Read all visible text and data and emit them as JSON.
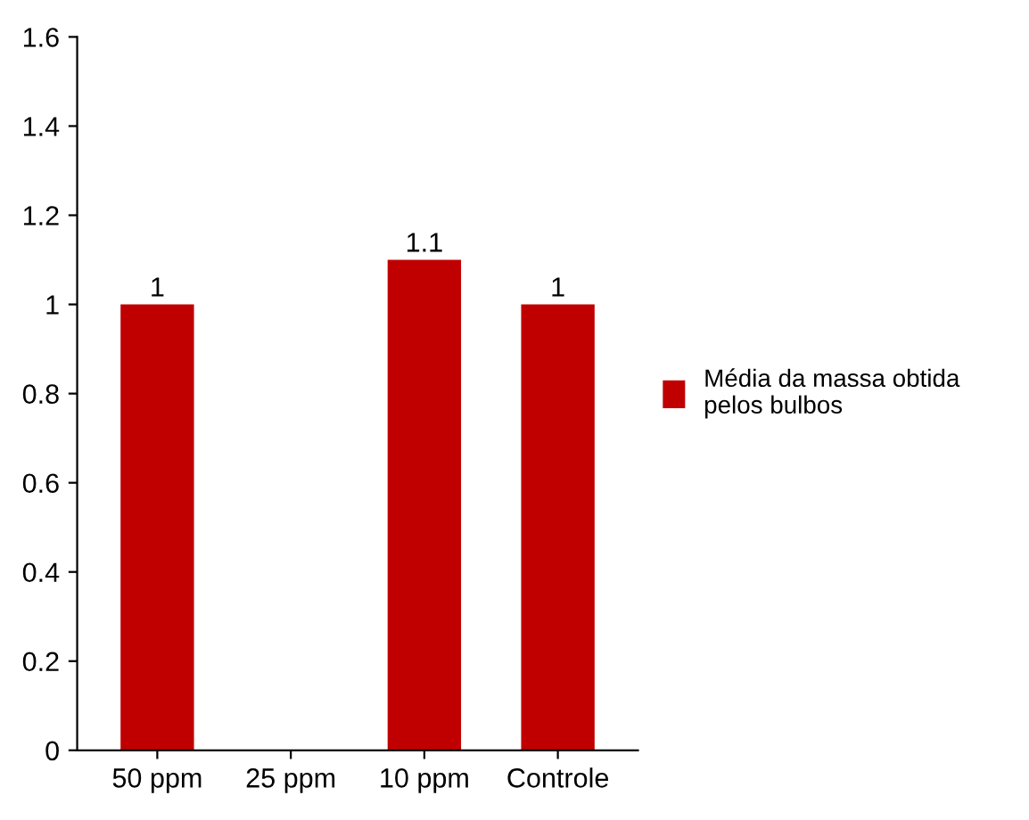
{
  "chart_data": {
    "type": "bar",
    "categories": [
      "50 ppm",
      "25 ppm",
      "10 ppm",
      "Controle"
    ],
    "series": [
      {
        "name": "Média da massa obtida pelos bulbos",
        "color": "#c00000",
        "values": [
          1,
          null,
          1.1,
          1
        ]
      }
    ],
    "ylim": [
      0,
      1.6
    ],
    "yticks": [
      0,
      0.2,
      0.4,
      0.6,
      0.8,
      1,
      1.2,
      1.4,
      1.6
    ],
    "data_labels": true,
    "grid": false,
    "legend": "right"
  }
}
